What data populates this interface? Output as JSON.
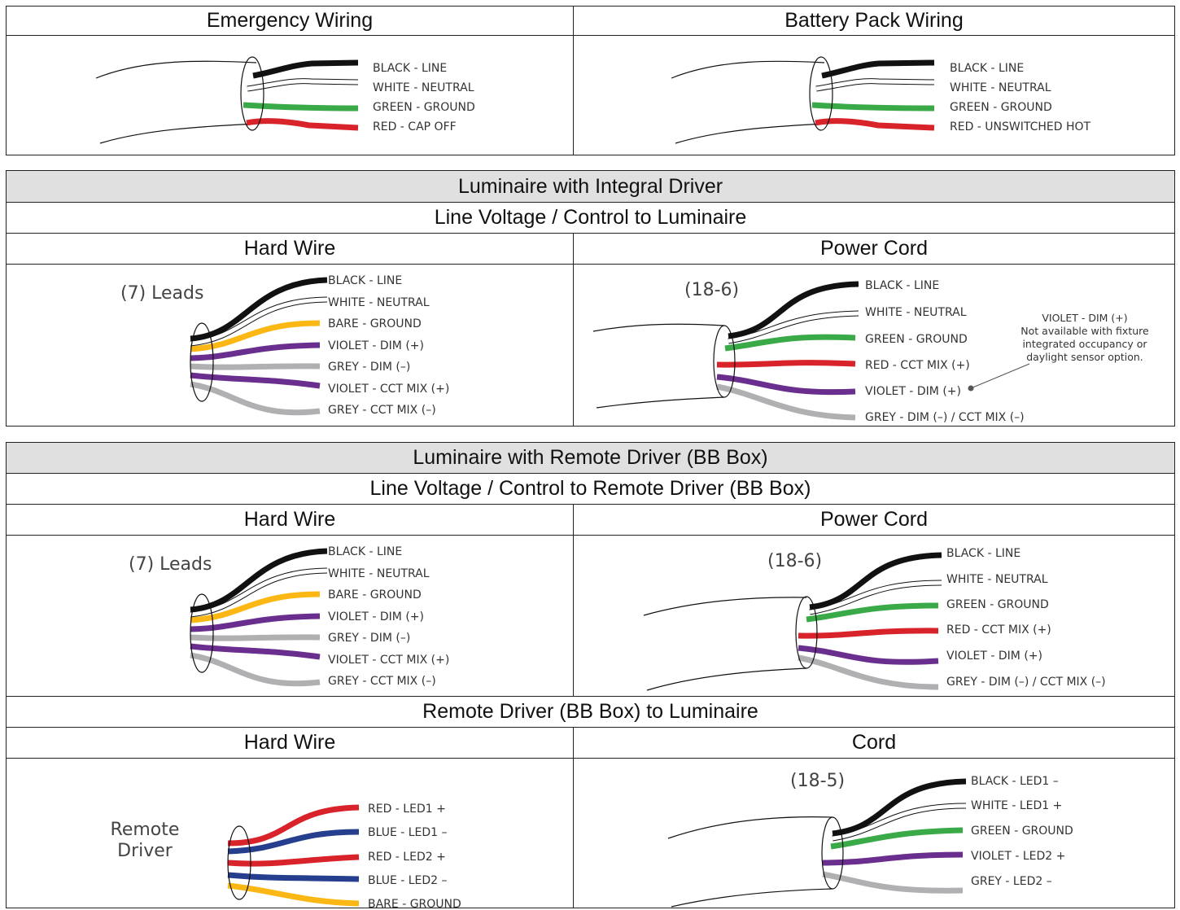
{
  "top": {
    "emergency": {
      "title": "Emergency Wiring",
      "labels": [
        "BLACK - LINE",
        "WHITE - NEUTRAL",
        "GREEN - GROUND",
        "RED - CAP OFF"
      ]
    },
    "battery": {
      "title": "Battery Pack Wiring",
      "labels": [
        "BLACK - LINE",
        "WHITE - NEUTRAL",
        "GREEN - GROUND",
        "RED - UNSWITCHED HOT"
      ]
    }
  },
  "integral": {
    "title": "Luminaire with Integral Driver",
    "subtitle": "Line Voltage / Control to Luminaire",
    "hard_wire": {
      "title": "Hard Wire",
      "lead_count": "(7) Leads",
      "labels": [
        "BLACK - LINE",
        "WHITE - NEUTRAL",
        "BARE - GROUND",
        "VIOLET - DIM (+)",
        "GREY - DIM (–)",
        "VIOLET - CCT MIX (+)",
        "GREY - CCT MIX (–)"
      ]
    },
    "power_cord": {
      "title": "Power Cord",
      "cord_spec": "(18-6)",
      "labels": [
        "BLACK - LINE",
        "WHITE - NEUTRAL",
        "GREEN - GROUND",
        "RED - CCT MIX (+)",
        "VIOLET - DIM (+)",
        "GREY - DIM (–) / CCT MIX (–)"
      ],
      "note": [
        "VIOLET - DIM (+)",
        "Not available with fixture",
        "integrated occupancy or",
        "daylight sensor option."
      ]
    }
  },
  "remote": {
    "title": "Luminaire with Remote Driver (BB Box)",
    "subtitle": "Line Voltage /  Control to Remote Driver (BB Box)",
    "hard_wire": {
      "title": "Hard Wire",
      "lead_count": "(7) Leads",
      "labels": [
        "BLACK - LINE",
        "WHITE - NEUTRAL",
        "BARE - GROUND",
        "VIOLET - DIM (+)",
        "GREY - DIM (–)",
        "VIOLET - CCT MIX (+)",
        "GREY - CCT MIX (–)"
      ]
    },
    "power_cord": {
      "title": "Power Cord",
      "cord_spec": "(18-6)",
      "labels": [
        "BLACK - LINE",
        "WHITE - NEUTRAL",
        "GREEN - GROUND",
        "RED - CCT MIX (+)",
        "VIOLET - DIM (+)",
        "GREY - DIM (–) / CCT MIX (–)"
      ]
    },
    "driver_to_luminaire": {
      "title": "Remote Driver (BB Box) to Luminaire",
      "hard_wire": {
        "title": "Hard Wire",
        "source_line1": "Remote",
        "source_line2": "Driver",
        "labels": [
          "RED - LED1 +",
          "BLUE - LED1 –",
          "RED - LED2 +",
          "BLUE - LED2 –",
          "BARE - GROUND"
        ]
      },
      "cord": {
        "title": "Cord",
        "cord_spec": "(18-5)",
        "labels": [
          "BLACK - LED1 –",
          "WHITE - LED1 +",
          "GREEN - GROUND",
          "VIOLET - LED2 +",
          "GREY - LED2 –"
        ]
      }
    }
  },
  "colors": {
    "black": "#111111",
    "white": "#ffffff",
    "green": "#3aaa48",
    "red": "#d9232a",
    "violet": "#6a2f8e",
    "grey": "#b0b0b2",
    "bare": "#fbb714",
    "blue": "#253f8e",
    "header_shade": "#e0e0e0"
  }
}
